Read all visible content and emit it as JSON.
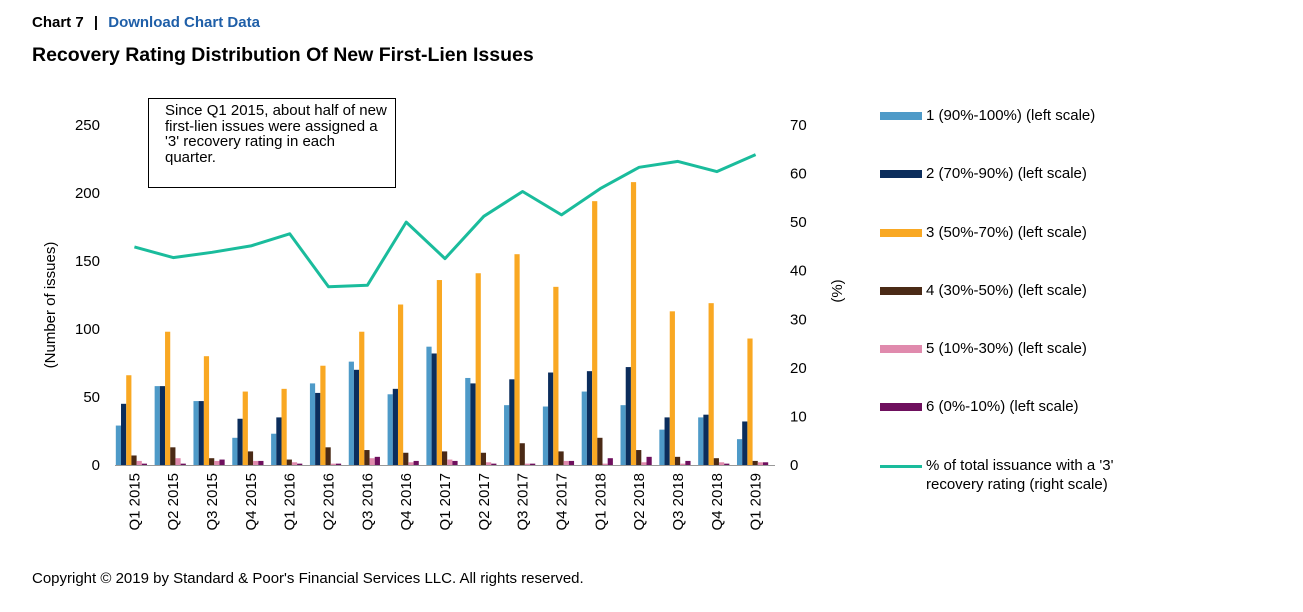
{
  "header": {
    "chart_label": "Chart 7",
    "separator": "|",
    "download_link": "Download Chart Data"
  },
  "title": "Recovery Rating Distribution Of New First-Lien Issues",
  "footer": "Copyright © 2019 by Standard & Poor's Financial Services LLC. All rights reserved.",
  "annotation": "Since Q1 2015, about half of new first-lien issues were assigned a '3' recovery rating in each quarter.",
  "colors": {
    "s1": "#4e9ac8",
    "s2": "#0b2d5c",
    "s3": "#f9a823",
    "s4": "#4a2a16",
    "s5": "#e08aad",
    "s6": "#6e0f5d",
    "line": "#1abc9c",
    "axis": "#999999"
  },
  "chart_data": {
    "type": "bar",
    "categories": [
      "Q1 2015",
      "Q2 2015",
      "Q3 2015",
      "Q4 2015",
      "Q1 2016",
      "Q2 2016",
      "Q3 2016",
      "Q4 2016",
      "Q1 2017",
      "Q2 2017",
      "Q3 2017",
      "Q4 2017",
      "Q1 2018",
      "Q2 2018",
      "Q3 2018",
      "Q4 2018",
      "Q1 2019"
    ],
    "ylabel": "(Number of issues)",
    "y2label": "(%)",
    "ylim": [
      0,
      250
    ],
    "y2lim": [
      0,
      70
    ],
    "yticks": [
      0,
      50,
      100,
      150,
      200,
      250
    ],
    "y2ticks": [
      0,
      10,
      20,
      30,
      40,
      50,
      60,
      70
    ],
    "legend_position": "right",
    "series": [
      {
        "name": "1 (90%-100%) (left scale)",
        "color_key": "s1",
        "values": [
          29,
          58,
          47,
          20,
          23,
          60,
          76,
          52,
          87,
          64,
          44,
          43,
          54,
          44,
          26,
          35,
          19
        ]
      },
      {
        "name": "2 (70%-90%) (left scale)",
        "color_key": "s2",
        "values": [
          45,
          58,
          47,
          34,
          35,
          53,
          70,
          56,
          82,
          60,
          63,
          68,
          69,
          72,
          35,
          37,
          32
        ]
      },
      {
        "name": "3 (50%-70%) (left scale)",
        "color_key": "s3",
        "values": [
          66,
          98,
          80,
          54,
          56,
          73,
          98,
          118,
          136,
          141,
          155,
          131,
          194,
          208,
          113,
          119,
          93
        ]
      },
      {
        "name": "4 (30%-50%) (left scale)",
        "color_key": "s4",
        "values": [
          7,
          13,
          5,
          10,
          4,
          13,
          11,
          9,
          10,
          9,
          16,
          10,
          20,
          11,
          6,
          5,
          3
        ]
      },
      {
        "name": "5 (10%-30%) (left scale)",
        "color_key": "s5",
        "values": [
          3,
          5,
          3,
          3,
          2,
          1,
          5,
          2,
          4,
          2,
          1,
          3,
          1,
          2,
          1,
          2,
          2
        ]
      },
      {
        "name": "6 (0%-10%) (left scale)",
        "color_key": "s6",
        "values": [
          1,
          1,
          4,
          3,
          1,
          1,
          6,
          3,
          3,
          1,
          1,
          3,
          5,
          6,
          3,
          1,
          2
        ]
      }
    ],
    "line_series": {
      "name": "% of total issuance with a '3' recovery rating (right scale)",
      "axis": "right",
      "color_key": "line",
      "values": [
        44.9,
        42.7,
        43.8,
        45.1,
        47.6,
        36.7,
        37.0,
        50.0,
        42.5,
        51.2,
        56.3,
        51.5,
        56.9,
        61.3,
        62.5,
        60.4,
        63.9
      ]
    }
  }
}
